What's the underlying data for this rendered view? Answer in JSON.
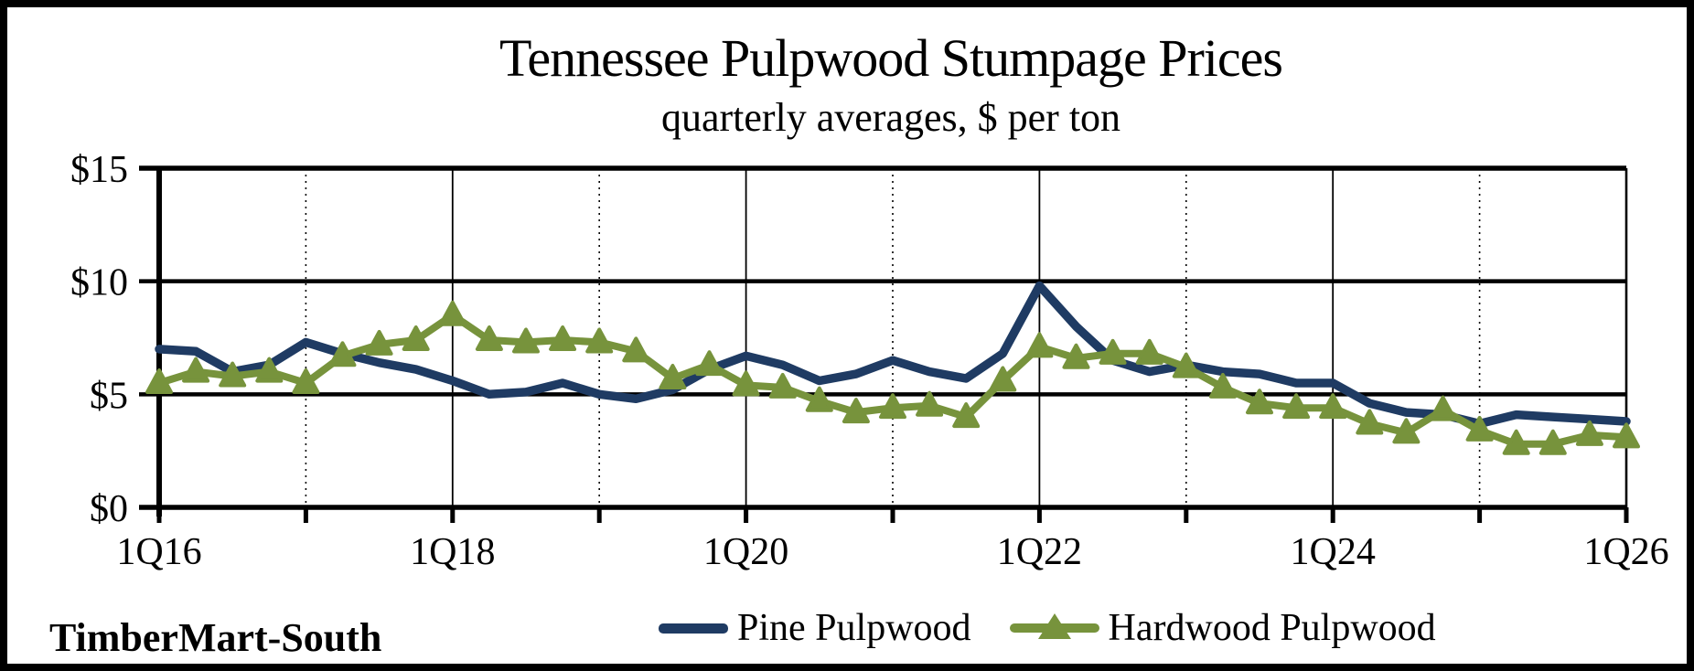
{
  "header": {
    "title": "Tennessee Pulpwood Stumpage Prices",
    "subtitle": "quarterly averages, $ per ton"
  },
  "footer": {
    "source_label": "TimberMart-South"
  },
  "legend": [
    {
      "label": "Pine Pulpwood",
      "color": "#1F3B63",
      "marker": "line"
    },
    {
      "label": "Hardwood Pulpwood",
      "color": "#77933C",
      "marker": "line-with-triangle"
    }
  ],
  "chart_data": {
    "type": "line",
    "title": "Tennessee Pulpwood Stumpage Prices",
    "subtitle": "quarterly averages, $ per ton",
    "ylim": [
      0,
      15
    ],
    "grid": "horizontal solid at $5 steps; vertical yearly lines alternating solid (even years) and dotted (odd years)",
    "legend_position": "bottom-center",
    "quarters": [
      "1Q16",
      "2Q16",
      "3Q16",
      "4Q16",
      "1Q17",
      "2Q17",
      "3Q17",
      "4Q17",
      "1Q18",
      "2Q18",
      "3Q18",
      "4Q18",
      "1Q19",
      "2Q19",
      "3Q19",
      "4Q19",
      "1Q20",
      "2Q20",
      "3Q20",
      "4Q20",
      "1Q21",
      "2Q21",
      "3Q21",
      "4Q21",
      "1Q22",
      "2Q22",
      "3Q22",
      "4Q22",
      "1Q23",
      "2Q23",
      "3Q23",
      "4Q23",
      "1Q24",
      "2Q24",
      "3Q24",
      "4Q24",
      "1Q25",
      "2Q25",
      "3Q25",
      "4Q25",
      "1Q26"
    ],
    "y_ticks": [
      {
        "label": "$15",
        "value": 15
      },
      {
        "label": "$10",
        "value": 10
      },
      {
        "label": "$5",
        "value": 5
      },
      {
        "label": "$0",
        "value": 0
      }
    ],
    "x_tick_labels": [
      {
        "label": "1Q16",
        "index": 0
      },
      {
        "label": "1Q18",
        "index": 8
      },
      {
        "label": "1Q20",
        "index": 16
      },
      {
        "label": "1Q22",
        "index": 24
      },
      {
        "label": "1Q24",
        "index": 32
      },
      {
        "label": "1Q26",
        "index": 40
      }
    ],
    "series": [
      {
        "name": "Pine Pulpwood",
        "color": "#1F3B63",
        "marker": "none",
        "values": [
          7.0,
          6.9,
          6.0,
          6.3,
          7.3,
          6.8,
          6.4,
          6.1,
          5.6,
          5.0,
          5.1,
          5.5,
          5.0,
          4.8,
          5.2,
          6.1,
          6.7,
          6.3,
          5.6,
          5.9,
          6.5,
          6.0,
          5.7,
          6.8,
          9.8,
          8.0,
          6.5,
          6.0,
          6.3,
          6.0,
          5.9,
          5.5,
          5.5,
          4.6,
          4.2,
          4.1,
          3.7,
          4.1,
          4.0,
          3.9,
          3.8
        ]
      },
      {
        "name": "Hardwood Pulpwood",
        "color": "#77933C",
        "marker": "triangle",
        "values": [
          5.5,
          6.0,
          5.8,
          6.0,
          5.5,
          6.7,
          7.2,
          7.4,
          8.5,
          7.4,
          7.3,
          7.4,
          7.3,
          6.9,
          5.7,
          6.3,
          5.4,
          5.3,
          4.7,
          4.2,
          4.4,
          4.5,
          4.0,
          5.6,
          7.1,
          6.6,
          6.8,
          6.8,
          6.2,
          5.3,
          4.6,
          4.4,
          4.4,
          3.7,
          3.3,
          4.3,
          3.4,
          2.8,
          2.8,
          3.2,
          3.1
        ]
      }
    ]
  }
}
